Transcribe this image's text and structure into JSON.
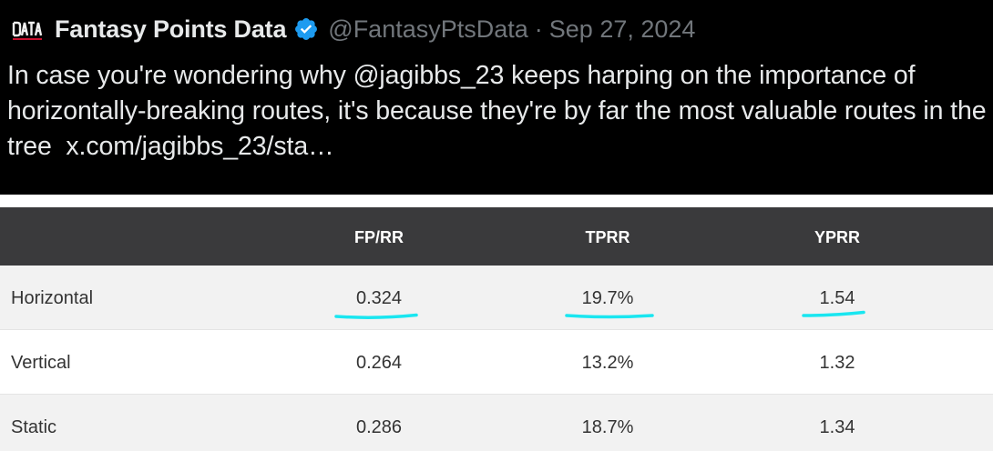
{
  "tweet": {
    "author": {
      "display_name": "Fantasy Points Data",
      "handle": "@FantasyPtsData",
      "date": "Sep 27, 2024",
      "separator": "·",
      "avatar_text": "DATA",
      "verified": true
    },
    "text_main": "In case you're wondering why @jagibbs_23 keeps harping on the importance of horizontally-breaking routes, it's because they're by far the most valuable routes in the tree",
    "text_link": "x.com/jagibbs_23/sta…"
  },
  "table": {
    "headers": [
      "",
      "FP/RR",
      "TPRR",
      "YPRR"
    ],
    "rows": [
      {
        "label": "Horizontal",
        "values": [
          "0.324",
          "19.7%",
          "1.54"
        ],
        "highlighted": true
      },
      {
        "label": "Vertical",
        "values": [
          "0.264",
          "13.2%",
          "1.32"
        ],
        "highlighted": false
      },
      {
        "label": "Static",
        "values": [
          "0.286",
          "18.7%",
          "1.34"
        ],
        "highlighted": false
      }
    ],
    "header_color": "#3a3a3c",
    "stripe_color": "#f2f2f2",
    "highlight_color": "#19e6f0"
  },
  "icons": {
    "verified": "verified-badge-icon",
    "avatar": "fantasy-points-data-logo"
  }
}
